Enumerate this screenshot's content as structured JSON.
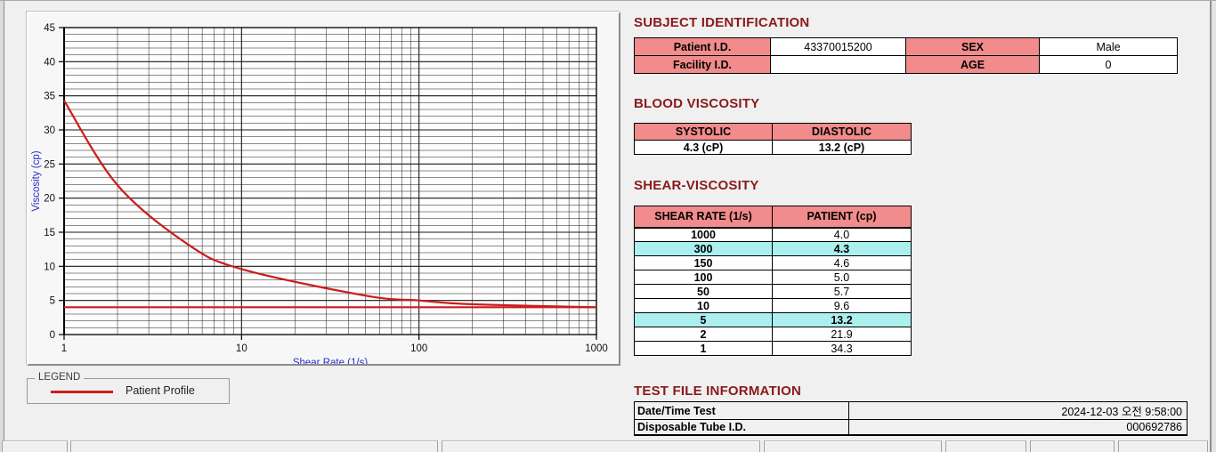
{
  "chart_data": {
    "type": "line",
    "x": [
      1,
      2,
      5,
      10,
      50,
      100,
      150,
      300,
      1000
    ],
    "series": [
      {
        "name": "Patient Profile",
        "color": "#cc1c1c",
        "values": [
          34.3,
          21.9,
          13.2,
          9.6,
          5.7,
          5.0,
          4.6,
          4.3,
          4.0
        ]
      }
    ],
    "reference_line": {
      "y": 4.0,
      "color": "#cc1c1c"
    },
    "title": "",
    "xlabel": "Shear Rate (1/s)",
    "ylabel": "Viscosity (cp)",
    "xscale": "log",
    "xlim": [
      1,
      1000
    ],
    "ylim": [
      0,
      45
    ],
    "x_ticks": [
      1,
      10,
      100,
      1000
    ],
    "y_tick_step": 5,
    "y_minor_step": 1,
    "grid": true,
    "legend_position": "below-left",
    "axis_label_color": "#2a2acc",
    "grid_color": "#1a1a1a"
  },
  "legend": {
    "title": "LEGEND",
    "series_label": "Patient Profile"
  },
  "sections": {
    "subject": {
      "title": "SUBJECT IDENTIFICATION",
      "rows": [
        {
          "label1": "Patient I.D.",
          "value1": "43370015200",
          "label2": "SEX",
          "value2": "Male"
        },
        {
          "label1": "Facility I.D.",
          "value1": "",
          "label2": "AGE",
          "value2": "0"
        }
      ]
    },
    "blood": {
      "title": "BLOOD VISCOSITY",
      "headers": [
        "SYSTOLIC",
        "DIASTOLIC"
      ],
      "values": [
        "4.3 (cP)",
        "13.2 (cP)"
      ]
    },
    "shear": {
      "title": "SHEAR-VISCOSITY",
      "headers": [
        "SHEAR RATE (1/s)",
        "PATIENT (cp)"
      ],
      "rows": [
        {
          "rate": "1000",
          "value": "4.0",
          "highlight": false
        },
        {
          "rate": "300",
          "value": "4.3",
          "highlight": true
        },
        {
          "rate": "150",
          "value": "4.6",
          "highlight": false
        },
        {
          "rate": "100",
          "value": "5.0",
          "highlight": false
        },
        {
          "rate": "50",
          "value": "5.7",
          "highlight": false
        },
        {
          "rate": "10",
          "value": "9.6",
          "highlight": false
        },
        {
          "rate": "5",
          "value": "13.2",
          "highlight": true
        },
        {
          "rate": "2",
          "value": "21.9",
          "highlight": false
        },
        {
          "rate": "1",
          "value": "34.3",
          "highlight": false
        }
      ]
    },
    "test_file": {
      "title": "TEST FILE INFORMATION",
      "rows": [
        {
          "label": "Date/Time Test",
          "value": "2024-12-03   오전 9:58:00"
        },
        {
          "label": "Disposable Tube I.D.",
          "value": "000692786"
        }
      ]
    }
  },
  "colors": {
    "header_bg": "#f28b8b",
    "highlight_bg": "#abf0ee",
    "section_title": "#8b1a1a",
    "curve": "#cc1c1c"
  }
}
